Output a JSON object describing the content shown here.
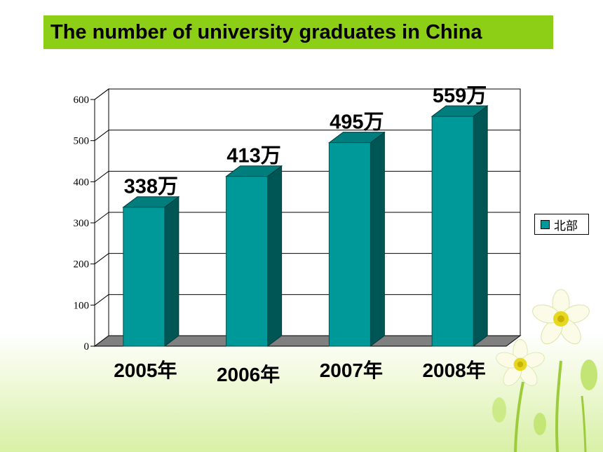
{
  "title": "The number of university graduates in China",
  "colors": {
    "title_bg": "#8ccf16",
    "bar_front": "#009999",
    "bar_side": "#005555",
    "bar_top": "#007d7d",
    "floor": "#808080"
  },
  "decoration": "daffodil-flowers",
  "chart_data": {
    "type": "bar",
    "categories": [
      "2005年",
      "2006年",
      "2007年",
      "2008年"
    ],
    "series": [
      {
        "name": "北部",
        "values": [
          338,
          413,
          495,
          559
        ]
      }
    ],
    "data_labels": [
      "338万",
      "413万",
      "495万",
      "559万"
    ],
    "yticks": [
      "0",
      "100",
      "200",
      "300",
      "400",
      "500",
      "600"
    ],
    "ylim": [
      0,
      600
    ],
    "grid": true,
    "legend_position": "right",
    "style": "3d"
  }
}
